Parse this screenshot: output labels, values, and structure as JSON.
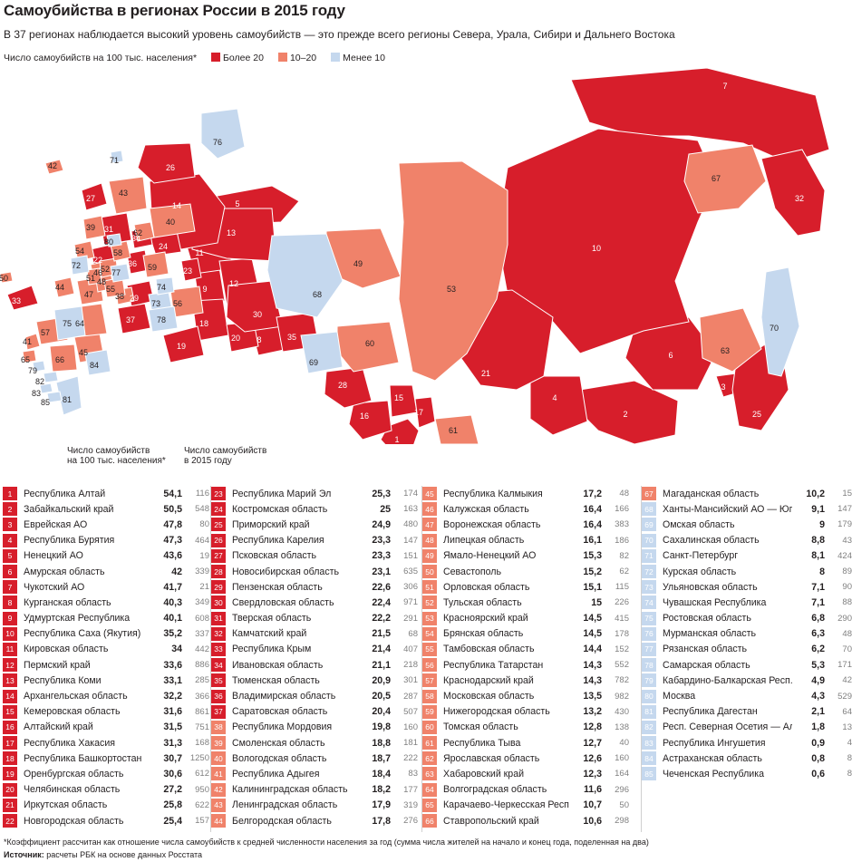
{
  "title": "Самоубийства в регионах России в 2015 году",
  "subtitle": "В 37 регионах наблюдается высокий уровень самоубийств — это прежде всего регионы Севера, Урала, Сибири и Дальнего Востока",
  "legend": {
    "label": "Число самоубийств на 100 тыс. населения*",
    "items": [
      {
        "label": "Более 20",
        "color": "#d71e2b"
      },
      {
        "label": "10–20",
        "color": "#f0826a"
      },
      {
        "label": "Менее 10",
        "color": "#c5d8ee"
      }
    ]
  },
  "colors": {
    "high": "#d71e2b",
    "mid": "#f0826a",
    "low": "#c5d8ee",
    "border": "#ffffff"
  },
  "column_headers": {
    "rate": "Число самоубийств\nна 100 тыс. населения*",
    "count": "Число самоубийств\nв 2015 году"
  },
  "map_labels": [
    "1",
    "2",
    "3",
    "4",
    "5",
    "6",
    "7",
    "8",
    "9",
    "10",
    "11",
    "12",
    "13",
    "14",
    "15",
    "16",
    "17",
    "18",
    "19",
    "20",
    "21",
    "22",
    "23",
    "24",
    "25",
    "26",
    "27",
    "28",
    "29",
    "30",
    "31",
    "32",
    "33",
    "34",
    "35",
    "36",
    "37",
    "38",
    "39",
    "40",
    "41",
    "42",
    "43",
    "44",
    "45",
    "46",
    "47",
    "48",
    "49",
    "50",
    "51",
    "52",
    "53",
    "54",
    "55",
    "56",
    "57",
    "58",
    "59",
    "60",
    "61",
    "62",
    "63",
    "64",
    "65",
    "66",
    "67",
    "68",
    "69",
    "70",
    "71",
    "72",
    "73",
    "74",
    "75",
    "76",
    "77",
    "78",
    "79",
    "80",
    "81",
    "82",
    "83",
    "84",
    "85"
  ],
  "regions": [
    {
      "n": "1",
      "name": "Республика Алтай",
      "rate": "54,1",
      "count": "116"
    },
    {
      "n": "2",
      "name": "Забайкальский край",
      "rate": "50,5",
      "count": "548"
    },
    {
      "n": "3",
      "name": "Еврейская АО",
      "rate": "47,8",
      "count": "80"
    },
    {
      "n": "4",
      "name": "Республика Бурятия",
      "rate": "47,3",
      "count": "464"
    },
    {
      "n": "5",
      "name": "Ненецкий АО",
      "rate": "43,6",
      "count": "19"
    },
    {
      "n": "6",
      "name": "Амурская область",
      "rate": "42",
      "count": "339"
    },
    {
      "n": "7",
      "name": "Чукотский АО",
      "rate": "41,7",
      "count": "21"
    },
    {
      "n": "8",
      "name": "Курганская область",
      "rate": "40,3",
      "count": "349"
    },
    {
      "n": "9",
      "name": "Удмуртская Республика",
      "rate": "40,1",
      "count": "608"
    },
    {
      "n": "10",
      "name": "Республика Саха (Якутия)",
      "rate": "35,2",
      "count": "337"
    },
    {
      "n": "11",
      "name": "Кировская область",
      "rate": "34",
      "count": "442"
    },
    {
      "n": "12",
      "name": "Пермский край",
      "rate": "33,6",
      "count": "886"
    },
    {
      "n": "13",
      "name": "Республика Коми",
      "rate": "33,1",
      "count": "285"
    },
    {
      "n": "14",
      "name": "Архангельская область",
      "rate": "32,2",
      "count": "366"
    },
    {
      "n": "15",
      "name": "Кемеровская область",
      "rate": "31,6",
      "count": "861"
    },
    {
      "n": "16",
      "name": "Алтайский край",
      "rate": "31,5",
      "count": "751"
    },
    {
      "n": "17",
      "name": "Республика Хакасия",
      "rate": "31,3",
      "count": "168"
    },
    {
      "n": "18",
      "name": "Республика Башкортостан",
      "rate": "30,7",
      "count": "1250"
    },
    {
      "n": "19",
      "name": "Оренбургская область",
      "rate": "30,6",
      "count": "612"
    },
    {
      "n": "20",
      "name": "Челябинская область",
      "rate": "27,2",
      "count": "950"
    },
    {
      "n": "21",
      "name": "Иркутская область",
      "rate": "25,8",
      "count": "622"
    },
    {
      "n": "22",
      "name": "Новгородская область",
      "rate": "25,4",
      "count": "157"
    },
    {
      "n": "23",
      "name": "Республика Марий Эл",
      "rate": "25,3",
      "count": "174"
    },
    {
      "n": "24",
      "name": "Костромская область",
      "rate": "25",
      "count": "163"
    },
    {
      "n": "25",
      "name": "Приморский край",
      "rate": "24,9",
      "count": "480"
    },
    {
      "n": "26",
      "name": "Республика Карелия",
      "rate": "23,3",
      "count": "147"
    },
    {
      "n": "27",
      "name": "Псковская область",
      "rate": "23,3",
      "count": "151"
    },
    {
      "n": "28",
      "name": "Новосибирская область",
      "rate": "23,1",
      "count": "635"
    },
    {
      "n": "29",
      "name": "Пензенская область",
      "rate": "22,6",
      "count": "306"
    },
    {
      "n": "30",
      "name": "Свердловская область",
      "rate": "22,4",
      "count": "971"
    },
    {
      "n": "31",
      "name": "Тверская область",
      "rate": "22,2",
      "count": "291"
    },
    {
      "n": "32",
      "name": "Камчатский край",
      "rate": "21,5",
      "count": "68"
    },
    {
      "n": "33",
      "name": "Республика Крым",
      "rate": "21,4",
      "count": "407"
    },
    {
      "n": "34",
      "name": "Ивановская область",
      "rate": "21,1",
      "count": "218"
    },
    {
      "n": "35",
      "name": "Тюменская область",
      "rate": "20,9",
      "count": "301"
    },
    {
      "n": "36",
      "name": "Владимирская область",
      "rate": "20,5",
      "count": "287"
    },
    {
      "n": "37",
      "name": "Саратовская область",
      "rate": "20,4",
      "count": "507"
    },
    {
      "n": "38",
      "name": "Республика Мордовия",
      "rate": "19,8",
      "count": "160"
    },
    {
      "n": "39",
      "name": "Смоленская область",
      "rate": "18,8",
      "count": "181"
    },
    {
      "n": "40",
      "name": "Вологодская область",
      "rate": "18,7",
      "count": "222"
    },
    {
      "n": "41",
      "name": "Республика Адыгея",
      "rate": "18,4",
      "count": "83"
    },
    {
      "n": "42",
      "name": "Калининградская область",
      "rate": "18,2",
      "count": "177"
    },
    {
      "n": "43",
      "name": "Ленинградская область",
      "rate": "17,9",
      "count": "319"
    },
    {
      "n": "44",
      "name": "Белгородская область",
      "rate": "17,8",
      "count": "276"
    },
    {
      "n": "45",
      "name": "Республика Калмыкия",
      "rate": "17,2",
      "count": "48"
    },
    {
      "n": "46",
      "name": "Калужская область",
      "rate": "16,4",
      "count": "166"
    },
    {
      "n": "47",
      "name": "Воронежская область",
      "rate": "16,4",
      "count": "383"
    },
    {
      "n": "48",
      "name": "Липецкая область",
      "rate": "16,1",
      "count": "186"
    },
    {
      "n": "49",
      "name": "Ямало-Ненецкий АО",
      "rate": "15,3",
      "count": "82"
    },
    {
      "n": "50",
      "name": "Севастополь",
      "rate": "15,2",
      "count": "62"
    },
    {
      "n": "51",
      "name": "Орловская область",
      "rate": "15,1",
      "count": "115"
    },
    {
      "n": "52",
      "name": "Тульская область",
      "rate": "15",
      "count": "226"
    },
    {
      "n": "53",
      "name": "Красноярский край",
      "rate": "14,5",
      "count": "415"
    },
    {
      "n": "54",
      "name": "Брянская область",
      "rate": "14,5",
      "count": "178"
    },
    {
      "n": "55",
      "name": "Тамбовская область",
      "rate": "14,4",
      "count": "152"
    },
    {
      "n": "56",
      "name": "Республика Татарстан",
      "rate": "14,3",
      "count": "552"
    },
    {
      "n": "57",
      "name": "Краснодарский край",
      "rate": "14,3",
      "count": "782"
    },
    {
      "n": "58",
      "name": "Московская область",
      "rate": "13,5",
      "count": "982"
    },
    {
      "n": "59",
      "name": "Нижегородская область",
      "rate": "13,2",
      "count": "430"
    },
    {
      "n": "60",
      "name": "Томская область",
      "rate": "12,8",
      "count": "138"
    },
    {
      "n": "61",
      "name": "Республика Тыва",
      "rate": "12,7",
      "count": "40"
    },
    {
      "n": "62",
      "name": "Ярославская область",
      "rate": "12,6",
      "count": "160"
    },
    {
      "n": "63",
      "name": "Хабаровский край",
      "rate": "12,3",
      "count": "164"
    },
    {
      "n": "64",
      "name": "Волгоградская область",
      "rate": "11,6",
      "count": "296"
    },
    {
      "n": "65",
      "name": "Карачаево-Черкесская Респ.",
      "rate": "10,7",
      "count": "50"
    },
    {
      "n": "66",
      "name": "Ставропольский край",
      "rate": "10,6",
      "count": "298"
    },
    {
      "n": "67",
      "name": "Магаданская область",
      "rate": "10,2",
      "count": "15"
    },
    {
      "n": "68",
      "name": "Ханты-Мансийский АО — Югра",
      "rate": "9,1",
      "count": "147"
    },
    {
      "n": "69",
      "name": "Омская область",
      "rate": "9",
      "count": "179"
    },
    {
      "n": "70",
      "name": "Сахалинская область",
      "rate": "8,8",
      "count": "43"
    },
    {
      "n": "71",
      "name": "Санкт-Петербург",
      "rate": "8,1",
      "count": "424"
    },
    {
      "n": "72",
      "name": "Курская область",
      "rate": "8",
      "count": "89"
    },
    {
      "n": "73",
      "name": "Ульяновская область",
      "rate": "7,1",
      "count": "90"
    },
    {
      "n": "74",
      "name": "Чувашская Республика",
      "rate": "7,1",
      "count": "88"
    },
    {
      "n": "75",
      "name": "Ростовская область",
      "rate": "6,8",
      "count": "290"
    },
    {
      "n": "76",
      "name": "Мурманская область",
      "rate": "6,3",
      "count": "48"
    },
    {
      "n": "77",
      "name": "Рязанская область",
      "rate": "6,2",
      "count": "70"
    },
    {
      "n": "78",
      "name": "Самарская область",
      "rate": "5,3",
      "count": "171"
    },
    {
      "n": "79",
      "name": "Кабардино-Балкарская Респ.",
      "rate": "4,9",
      "count": "42"
    },
    {
      "n": "80",
      "name": "Москва",
      "rate": "4,3",
      "count": "529"
    },
    {
      "n": "81",
      "name": "Республика Дагестан",
      "rate": "2,1",
      "count": "64"
    },
    {
      "n": "82",
      "name": "Респ. Северная Осетия — Алания",
      "rate": "1,8",
      "count": "13"
    },
    {
      "n": "83",
      "name": "Республика Ингушетия",
      "rate": "0,9",
      "count": "4"
    },
    {
      "n": "84",
      "name": "Астраханская область",
      "rate": "0,8",
      "count": "8"
    },
    {
      "n": "85",
      "name": "Чеченская Республика",
      "rate": "0,6",
      "count": "8"
    }
  ],
  "footnote": "*Коэффициент рассчитан как отношение числа самоубийств к средней численности населения за год (сумма числа жителей на начало и конец года, поделенная на два)",
  "source": {
    "label": "Источник:",
    "text": " расчеты РБК на основе данных Росстата"
  }
}
